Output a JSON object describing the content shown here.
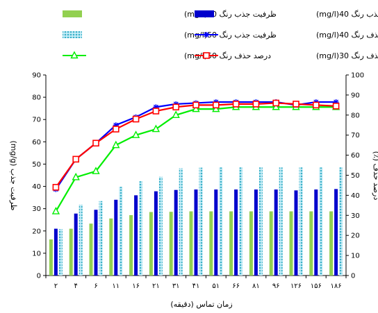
{
  "chart_data": {
    "type": "bar",
    "categories": [
      "۲",
      "۴",
      "۶",
      "۱۱",
      "۱۶",
      "۲۱",
      "۳۱",
      "۴۱",
      "۵۱",
      "۶۶",
      "۸۱",
      "۹۶",
      "۱۲۶",
      "۱۵۶",
      "۱۸۶"
    ],
    "xlabel": "زمان تماس (دقیقه)",
    "ylabel_left": "ظرفیت جذب (mg/g)",
    "ylabel_right": "درصد حذف (٪)",
    "ylim_left": [
      0,
      90
    ],
    "ylim_right": [
      0,
      100
    ],
    "yticks_left": [
      0,
      10,
      20,
      30,
      40,
      50,
      60,
      70,
      80,
      90
    ],
    "yticks_right": [
      0,
      10,
      20,
      30,
      40,
      50,
      60,
      70,
      80,
      90,
      100
    ],
    "grid": false,
    "legend_position": "top",
    "bar_series": [
      {
        "name": "ظرفیت جذب رنگ 30(mg/l)",
        "axis": "left",
        "color": "#92d050",
        "values": [
          16.2,
          21.0,
          23.3,
          25.6,
          27.1,
          28.5,
          28.6,
          28.8,
          28.8,
          28.8,
          28.8,
          28.8,
          28.8,
          28.8,
          28.8
        ]
      },
      {
        "name": "ظرفیت جذب رنگ 40(mg/l)",
        "axis": "left",
        "color": "#0000cc",
        "values": [
          21.0,
          27.8,
          29.5,
          34.0,
          36.0,
          37.8,
          38.4,
          38.6,
          38.6,
          38.6,
          38.6,
          38.6,
          38.2,
          38.6,
          38.8
        ]
      },
      {
        "name": "ظرفیت جذب رنگ 50(mg/l)",
        "axis": "left",
        "color": "#3ab0c8",
        "values": [
          20.8,
          31.8,
          33.4,
          39.8,
          42.3,
          44.3,
          48.1,
          48.4,
          48.5,
          48.5,
          48.5,
          48.5,
          48.5,
          48.5,
          48.5
        ]
      }
    ],
    "line_series": [
      {
        "name": "درصد حذف رنگ 30(mg/l)",
        "axis": "right",
        "color": "#ff0000",
        "marker": "square",
        "values": [
          44,
          58,
          66,
          73,
          78,
          82,
          84,
          85,
          85,
          85.5,
          85.5,
          86,
          85.5,
          85,
          84.5
        ]
      },
      {
        "name": "درصد حذف رنگ 40(mg/l)",
        "axis": "right",
        "color": "#0000ff",
        "marker": "asterisk",
        "values": [
          43,
          58,
          66,
          75,
          79,
          84,
          85.5,
          86,
          86.5,
          86.5,
          86.5,
          86.5,
          85,
          86.5,
          86.5
        ]
      },
      {
        "name": "درصد حذف رنگ 50(mg/l)",
        "axis": "right",
        "color": "#00ee00",
        "marker": "triangle",
        "values": [
          32,
          49,
          52,
          65,
          70,
          73,
          80,
          83,
          83,
          84,
          84,
          84,
          84,
          84,
          84
        ]
      }
    ]
  }
}
